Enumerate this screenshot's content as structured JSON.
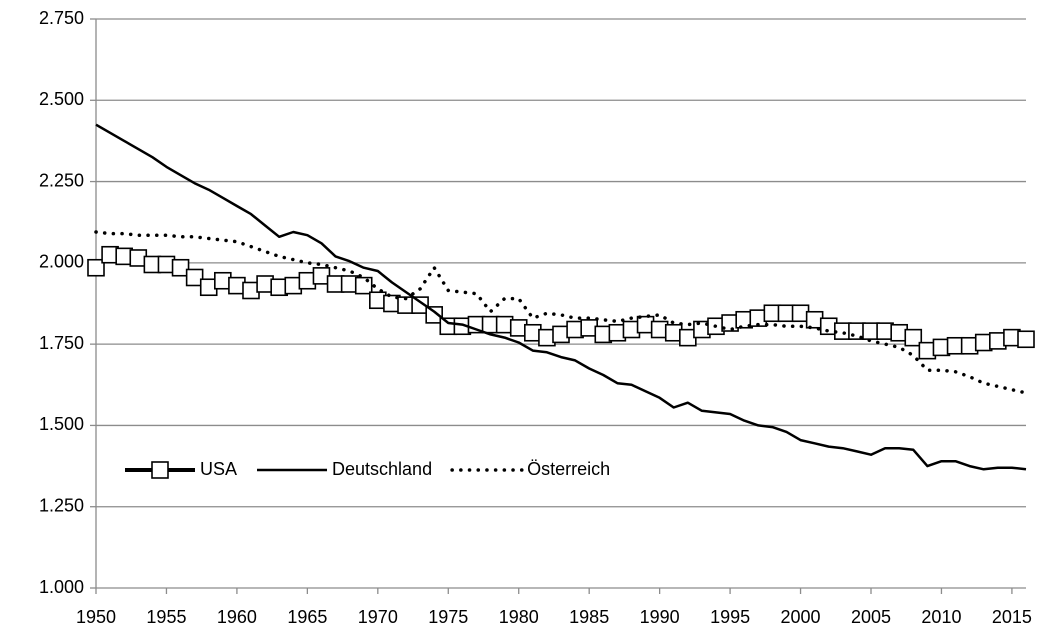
{
  "chart_data": {
    "type": "line",
    "x": [
      1950,
      1951,
      1952,
      1953,
      1954,
      1955,
      1956,
      1957,
      1958,
      1959,
      1960,
      1961,
      1962,
      1963,
      1964,
      1965,
      1966,
      1967,
      1968,
      1969,
      1970,
      1971,
      1972,
      1973,
      1974,
      1975,
      1976,
      1977,
      1978,
      1979,
      1980,
      1981,
      1982,
      1983,
      1984,
      1985,
      1986,
      1987,
      1988,
      1989,
      1990,
      1991,
      1992,
      1993,
      1994,
      1995,
      1996,
      1997,
      1998,
      1999,
      2000,
      2001,
      2002,
      2003,
      2004,
      2005,
      2006,
      2007,
      2008,
      2009,
      2010,
      2011,
      2012,
      2013,
      2014,
      2015,
      2016
    ],
    "series": [
      {
        "name": "USA",
        "color": "#000000",
        "marker": "square",
        "dash": "solid",
        "width": 4,
        "values": [
          1985,
          2025,
          2020,
          2015,
          1995,
          1995,
          1985,
          1955,
          1925,
          1945,
          1930,
          1915,
          1935,
          1925,
          1930,
          1945,
          1960,
          1935,
          1935,
          1930,
          1885,
          1875,
          1870,
          1870,
          1840,
          1805,
          1805,
          1810,
          1810,
          1810,
          1800,
          1785,
          1770,
          1780,
          1795,
          1800,
          1780,
          1785,
          1795,
          1810,
          1795,
          1785,
          1770,
          1795,
          1805,
          1815,
          1825,
          1830,
          1845,
          1845,
          1845,
          1825,
          1805,
          1790,
          1790,
          1790,
          1790,
          1785,
          1770,
          1730,
          1740,
          1745,
          1745,
          1755,
          1760,
          1770,
          1765
        ]
      },
      {
        "name": "Deutschland",
        "color": "#000000",
        "marker": "none",
        "dash": "solid",
        "width": 2.5,
        "values": [
          2425,
          2400,
          2375,
          2350,
          2325,
          2295,
          2270,
          2245,
          2225,
          2200,
          2175,
          2150,
          2115,
          2080,
          2095,
          2085,
          2060,
          2020,
          2005,
          1985,
          1975,
          1940,
          1910,
          1880,
          1850,
          1815,
          1810,
          1795,
          1780,
          1770,
          1755,
          1730,
          1725,
          1710,
          1700,
          1675,
          1655,
          1630,
          1625,
          1605,
          1585,
          1555,
          1570,
          1545,
          1540,
          1535,
          1515,
          1500,
          1495,
          1480,
          1455,
          1445,
          1435,
          1430,
          1420,
          1410,
          1430,
          1430,
          1425,
          1375,
          1390,
          1390,
          1375,
          1365,
          1370,
          1370,
          1365
        ]
      },
      {
        "name": "Österreich",
        "color": "#000000",
        "marker": "none",
        "dash": "dotted",
        "width": 3.5,
        "values": [
          2095,
          2090,
          2090,
          2085,
          2085,
          2085,
          2080,
          2080,
          2075,
          2070,
          2065,
          2050,
          2035,
          2020,
          2010,
          2000,
          1995,
          1985,
          1975,
          1955,
          1920,
          1895,
          1890,
          1920,
          1985,
          1915,
          1910,
          1905,
          1850,
          1890,
          1890,
          1830,
          1845,
          1840,
          1830,
          1830,
          1825,
          1820,
          1830,
          1835,
          1840,
          1815,
          1810,
          1815,
          1805,
          1795,
          1805,
          1810,
          1810,
          1805,
          1805,
          1800,
          1790,
          1785,
          1775,
          1760,
          1750,
          1740,
          1715,
          1670,
          1670,
          1665,
          1650,
          1630,
          1620,
          1610,
          1600
        ]
      }
    ],
    "xlim": [
      1950,
      2016
    ],
    "xticks": [
      1950,
      1955,
      1960,
      1965,
      1970,
      1975,
      1980,
      1985,
      1990,
      1995,
      2000,
      2005,
      2010,
      2015
    ],
    "ylim": [
      1000,
      2750
    ],
    "yticks": [
      {
        "value": 1000,
        "label": "1.000"
      },
      {
        "value": 1250,
        "label": "1.250"
      },
      {
        "value": 1500,
        "label": "1.500"
      },
      {
        "value": 1750,
        "label": "1.750"
      },
      {
        "value": 2000,
        "label": "2.000"
      },
      {
        "value": 2250,
        "label": "2.250"
      },
      {
        "value": 2500,
        "label": "2.500"
      },
      {
        "value": 2750,
        "label": "2.750"
      }
    ],
    "grid": true,
    "grid_color": "#8c8c8c",
    "legend": "lower left"
  }
}
